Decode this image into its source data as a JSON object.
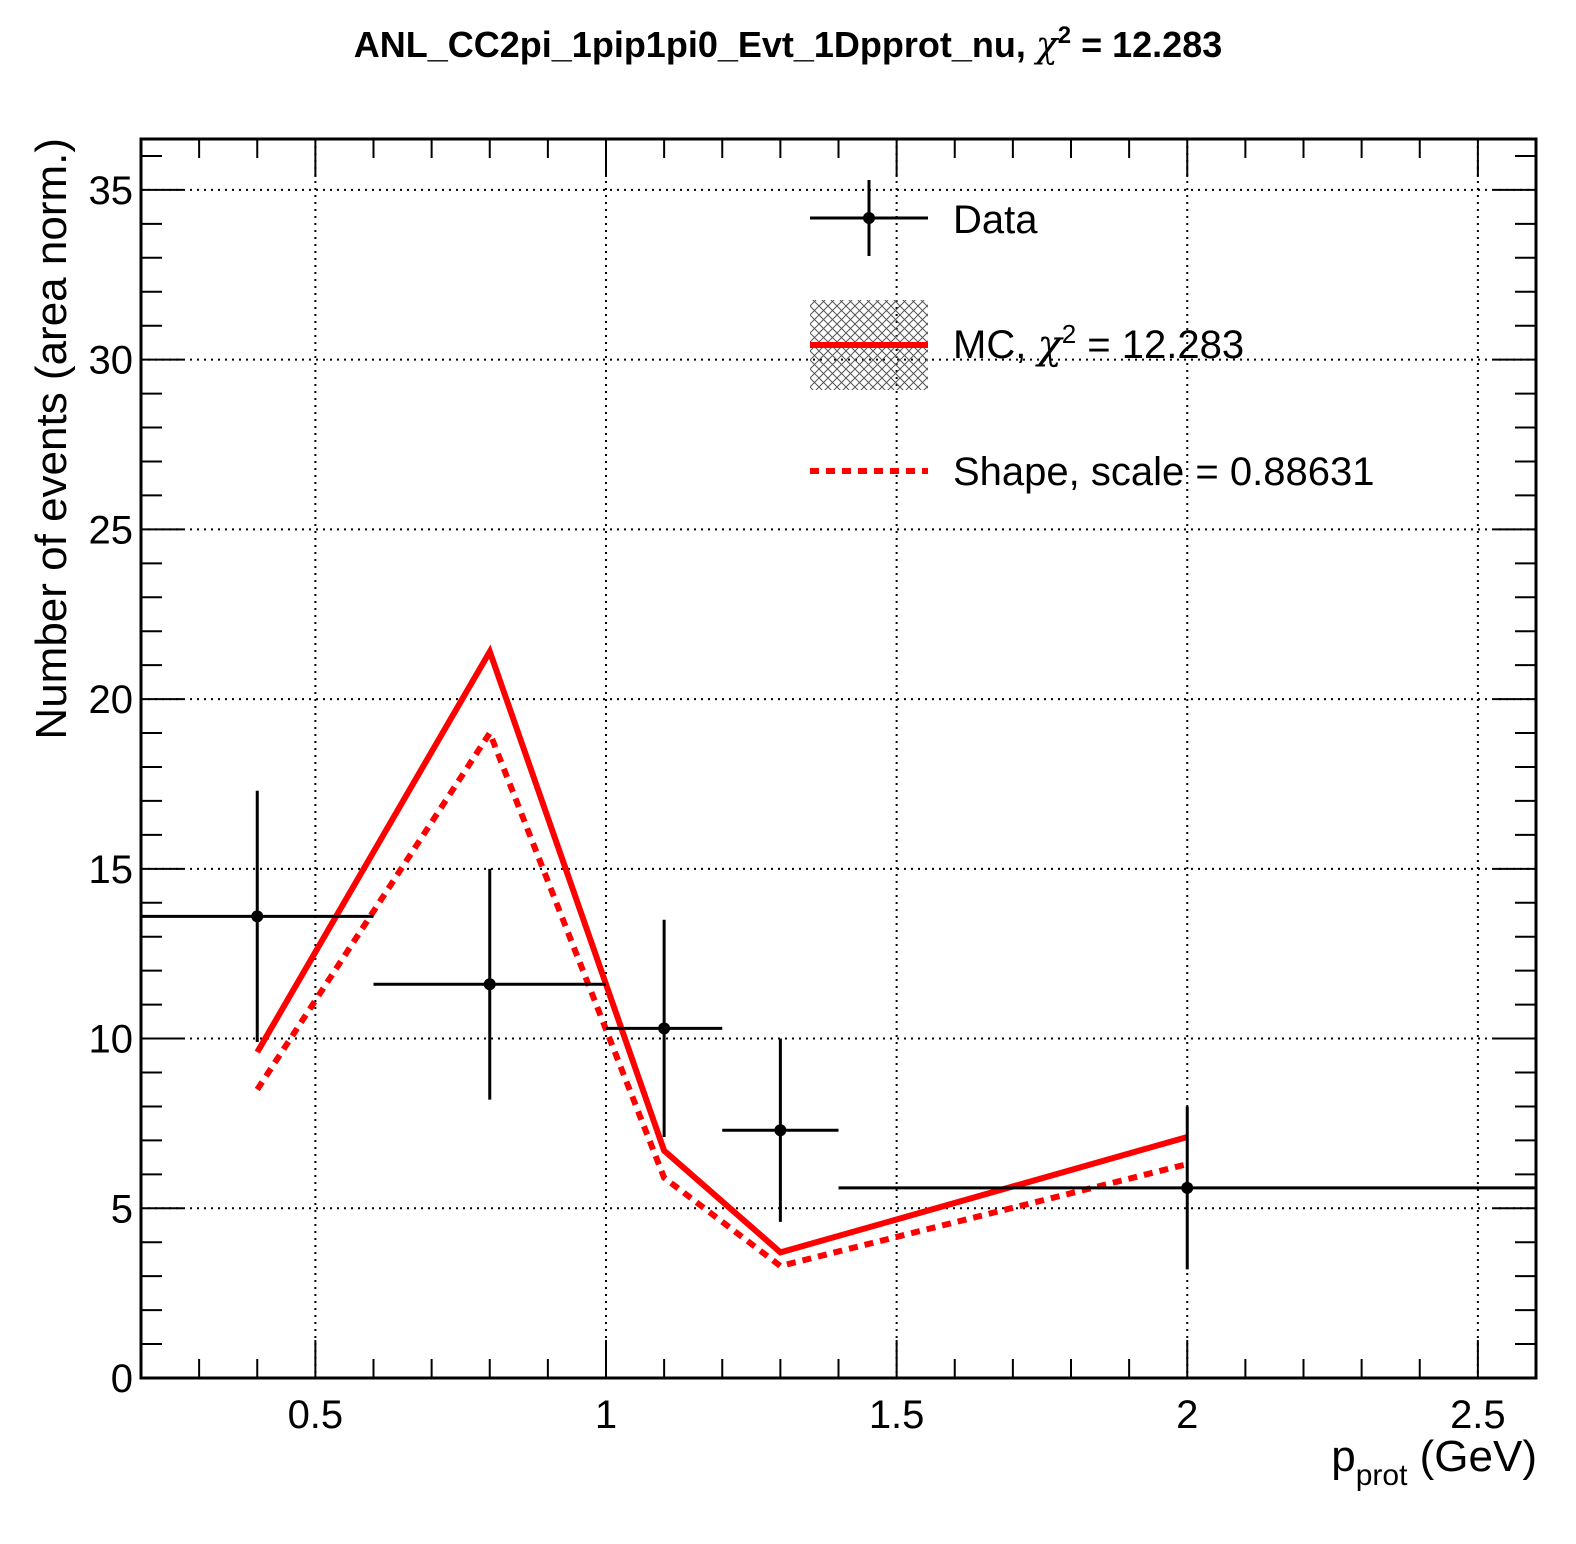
{
  "chart_data": {
    "type": "line",
    "title": {
      "prefix": "ANL_CC2pi_1pip1pi0_Evt_1Dpprot_nu, ",
      "chi": "χ",
      "sup": "2",
      "suffix": " = 12.283"
    },
    "xlabel": {
      "main": "p",
      "sub": "prot",
      "unit": " (GeV)"
    },
    "ylabel": "Number of events (area norm.)",
    "xlim": [
      0.2,
      2.6
    ],
    "ylim": [
      0,
      36.5
    ],
    "x_major_ticks": [
      0.5,
      1,
      1.5,
      2,
      2.5
    ],
    "x_tick_labels": [
      "0.5",
      "1",
      "1.5",
      "2",
      "2.5"
    ],
    "y_major_ticks": [
      0,
      5,
      10,
      15,
      20,
      25,
      30,
      35
    ],
    "y_tick_labels": [
      "0",
      "5",
      "10",
      "15",
      "20",
      "25",
      "30",
      "35"
    ],
    "grid": true,
    "legend_position": "top-right",
    "legend": {
      "data": "Data",
      "mc_prefix": "MC, ",
      "mc_chi": "χ",
      "mc_sup": "2",
      "mc_suffix": " = 12.283",
      "shape": "Shape, scale = 0.88631"
    },
    "series": [
      {
        "kind": "data",
        "color": "#000000",
        "points": [
          {
            "x": 0.4,
            "x_low": 0.2,
            "x_high": 0.6,
            "y": 13.6,
            "y_low": 9.9,
            "y_high": 17.3
          },
          {
            "x": 0.8,
            "x_low": 0.6,
            "x_high": 1.0,
            "y": 11.6,
            "y_low": 8.2,
            "y_high": 15.0
          },
          {
            "x": 1.1,
            "x_low": 1.0,
            "x_high": 1.2,
            "y": 10.3,
            "y_low": 7.1,
            "y_high": 13.5
          },
          {
            "x": 1.3,
            "x_low": 1.2,
            "x_high": 1.4,
            "y": 7.3,
            "y_low": 4.6,
            "y_high": 10.0
          },
          {
            "x": 2.0,
            "x_low": 1.4,
            "x_high": 2.6,
            "y": 5.6,
            "y_low": 3.2,
            "y_high": 8.0
          }
        ]
      },
      {
        "kind": "mc",
        "color": "#ff0000",
        "x": [
          0.4,
          0.8,
          1.1,
          1.3,
          2.0
        ],
        "y": [
          9.6,
          21.4,
          6.7,
          3.7,
          7.1
        ]
      },
      {
        "kind": "shape",
        "color": "#ff0000",
        "x": [
          0.4,
          0.8,
          1.1,
          1.3,
          2.0
        ],
        "y": [
          8.5,
          19.0,
          5.9,
          3.3,
          6.3
        ]
      }
    ]
  }
}
